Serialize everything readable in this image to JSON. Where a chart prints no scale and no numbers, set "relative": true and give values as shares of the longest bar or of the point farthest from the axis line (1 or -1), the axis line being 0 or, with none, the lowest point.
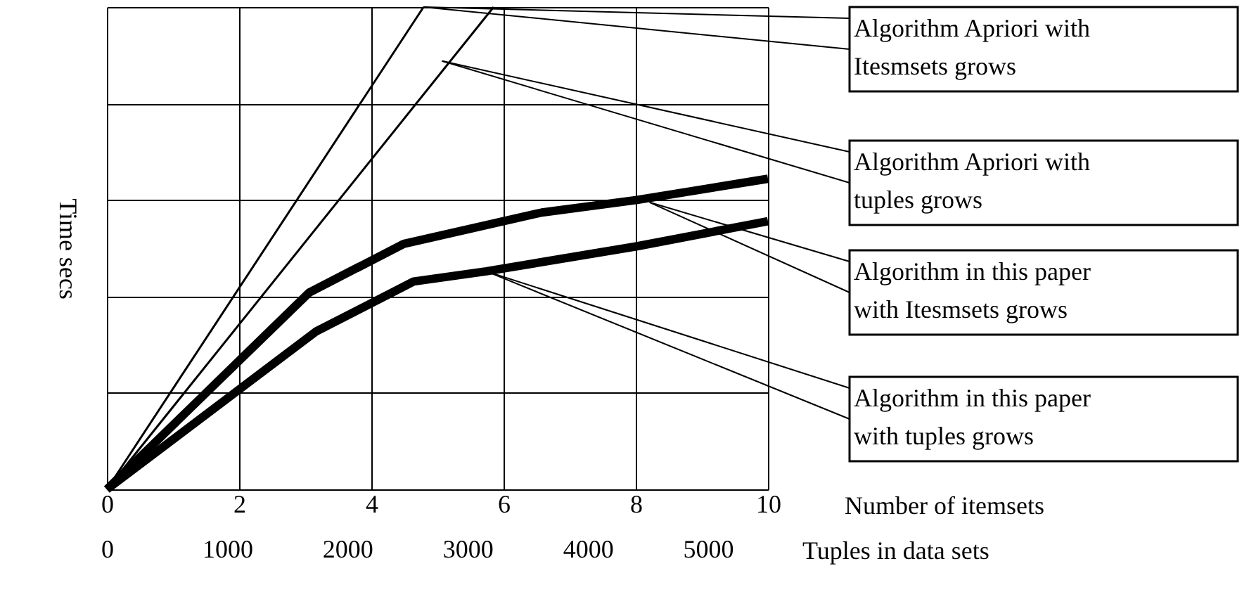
{
  "chart_data": {
    "type": "line",
    "relative": true,
    "ylabel": "Time secs",
    "xlabel": "Number of itemsets",
    "xlim": [
      0,
      10
    ],
    "xticks": [
      0,
      2,
      4,
      6,
      8,
      10
    ],
    "x2label": "Tuples in data sets",
    "x2lim": [
      0,
      5500
    ],
    "x2ticks": [
      0,
      1000,
      2000,
      3000,
      4000,
      5000
    ],
    "grid": true,
    "marker": "none",
    "line_style": "solid",
    "series": [
      {
        "color": "#000000",
        "x": [
          0,
          4.79
        ],
        "values": [
          0,
          1
        ]
      },
      {
        "color": "#000000",
        "x": [
          0,
          5.85
        ],
        "values": [
          0,
          1
        ]
      },
      {
        "color": "#000000",
        "x": [
          0,
          3.06,
          4.49,
          6.58,
          8.02,
          10
        ],
        "values": [
          0,
          0.408,
          0.509,
          0.574,
          0.6,
          0.644
        ]
      },
      {
        "color": "#000000",
        "x": [
          0,
          3.16,
          4.64,
          5.74,
          8.02,
          10
        ],
        "values": [
          0,
          0.327,
          0.431,
          0.452,
          0.504,
          0.556
        ]
      }
    ],
    "annotations": [
      {
        "text": "Algorithm Apriori with Itesmsets grows",
        "x": 4.79,
        "y": 1
      },
      {
        "text": "Algorithm Apriori with tuples grows",
        "x": 5.07,
        "y": 0.888
      },
      {
        "text": "Algorithm in this paper with Itesmsets grows",
        "x": 8.21,
        "y": 0.595
      },
      {
        "text": "Algorithm in this paper with tuples grows",
        "x": 5.74,
        "y": 0.452
      }
    ]
  }
}
